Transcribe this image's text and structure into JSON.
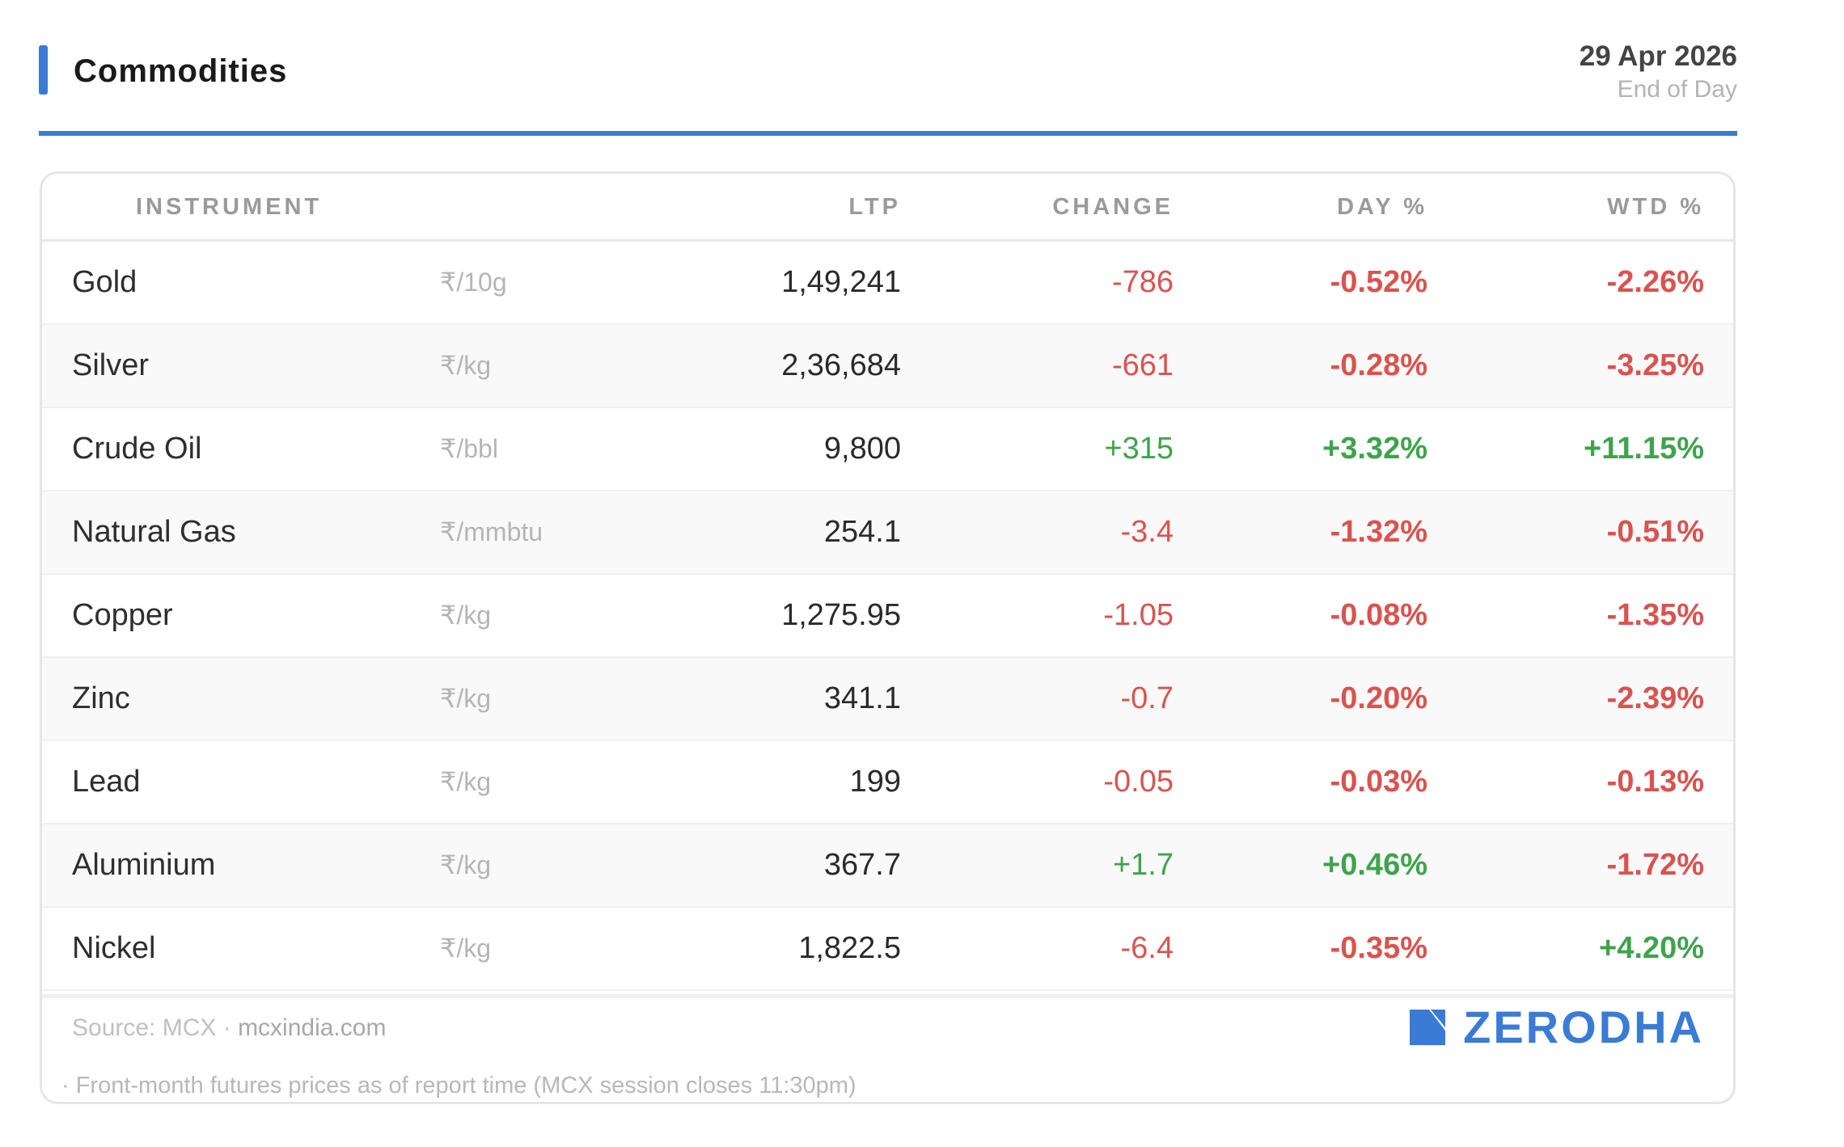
{
  "header": {
    "title": "Commodities",
    "date": "29 Apr 2026",
    "report_type": "End of Day"
  },
  "table": {
    "columns": {
      "instrument": "INSTRUMENT",
      "ltp": "LTP",
      "change": "CHANGE",
      "day_pct": "DAY %",
      "wtd_pct": "WTD %"
    },
    "rows": [
      {
        "name": "Gold",
        "unit": "₹/10g",
        "ltp": "1,49,241",
        "change": "-786",
        "day_pct": "-0.52%",
        "wtd_pct": "-2.26%"
      },
      {
        "name": "Silver",
        "unit": "₹/kg",
        "ltp": "2,36,684",
        "change": "-661",
        "day_pct": "-0.28%",
        "wtd_pct": "-3.25%"
      },
      {
        "name": "Crude Oil",
        "unit": "₹/bbl",
        "ltp": "9,800",
        "change": "+315",
        "day_pct": "+3.32%",
        "wtd_pct": "+11.15%"
      },
      {
        "name": "Natural Gas",
        "unit": "₹/mmbtu",
        "ltp": "254.1",
        "change": "-3.4",
        "day_pct": "-1.32%",
        "wtd_pct": "-0.51%"
      },
      {
        "name": "Copper",
        "unit": "₹/kg",
        "ltp": "1,275.95",
        "change": "-1.05",
        "day_pct": "-0.08%",
        "wtd_pct": "-1.35%"
      },
      {
        "name": "Zinc",
        "unit": "₹/kg",
        "ltp": "341.1",
        "change": "-0.7",
        "day_pct": "-0.20%",
        "wtd_pct": "-2.39%"
      },
      {
        "name": "Lead",
        "unit": "₹/kg",
        "ltp": "199",
        "change": "-0.05",
        "day_pct": "-0.03%",
        "wtd_pct": "-0.13%"
      },
      {
        "name": "Aluminium",
        "unit": "₹/kg",
        "ltp": "367.7",
        "change": "+1.7",
        "day_pct": "+0.46%",
        "wtd_pct": "-1.72%"
      },
      {
        "name": "Nickel",
        "unit": "₹/kg",
        "ltp": "1,822.5",
        "change": "-6.4",
        "day_pct": "-0.35%",
        "wtd_pct": "+4.20%"
      }
    ]
  },
  "footer": {
    "source_prefix": "Source: MCX · ",
    "source_site": "mcxindia.com",
    "note": "· Front-month futures prices as of report time (MCX session closes 11:30pm)",
    "brand": "ZERODHA",
    "brand_icon": "zerodha-logo-icon"
  },
  "colors": {
    "accent": "#3a7bd5",
    "negative": "#d9534f",
    "positive": "#3fa34d"
  }
}
